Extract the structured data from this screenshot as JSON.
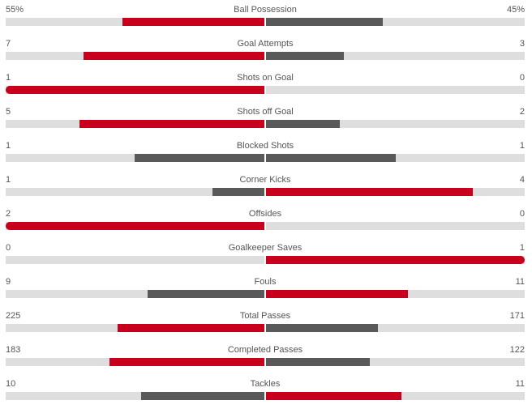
{
  "colors": {
    "leading": "#c8001d",
    "trailing": "#595959",
    "track": "#dedede",
    "text": "#555555"
  },
  "stats": [
    {
      "name": "Ball Possession",
      "home": "55%",
      "away": "45%",
      "home_value": 55,
      "away_value": 45,
      "max": 100
    },
    {
      "name": "Goal Attempts",
      "home": "7",
      "away": "3",
      "home_value": 7,
      "away_value": 3,
      "max": 10
    },
    {
      "name": "Shots on Goal",
      "home": "1",
      "away": "0",
      "home_value": 1,
      "away_value": 0,
      "max": 1
    },
    {
      "name": "Shots off Goal",
      "home": "5",
      "away": "2",
      "home_value": 5,
      "away_value": 2,
      "max": 7
    },
    {
      "name": "Blocked Shots",
      "home": "1",
      "away": "1",
      "home_value": 1,
      "away_value": 1,
      "max": 2
    },
    {
      "name": "Corner Kicks",
      "home": "1",
      "away": "4",
      "home_value": 1,
      "away_value": 4,
      "max": 5
    },
    {
      "name": "Offsides",
      "home": "2",
      "away": "0",
      "home_value": 2,
      "away_value": 0,
      "max": 2
    },
    {
      "name": "Goalkeeper Saves",
      "home": "0",
      "away": "1",
      "home_value": 0,
      "away_value": 1,
      "max": 1
    },
    {
      "name": "Fouls",
      "home": "9",
      "away": "11",
      "home_value": 9,
      "away_value": 11,
      "max": 20
    },
    {
      "name": "Total Passes",
      "home": "225",
      "away": "171",
      "home_value": 225,
      "away_value": 171,
      "max": 396
    },
    {
      "name": "Completed Passes",
      "home": "183",
      "away": "122",
      "home_value": 183,
      "away_value": 122,
      "max": 305
    },
    {
      "name": "Tackles",
      "home": "10",
      "away": "11",
      "home_value": 10,
      "away_value": 11,
      "max": 21
    }
  ]
}
